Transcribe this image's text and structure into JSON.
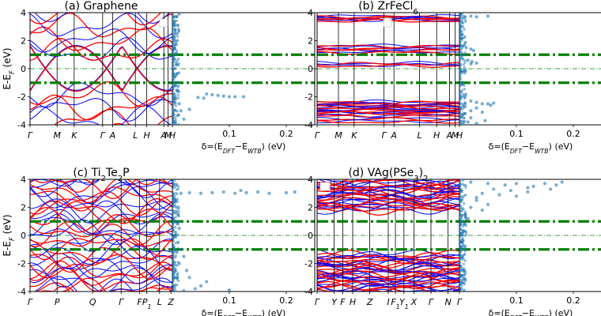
{
  "figure": {
    "ylabel": "E-E_F (eV)",
    "xlabel_delta": "δ=(E_DFT−E_WTB) (eV)"
  },
  "chart_data": [
    {
      "type": "line",
      "panel": "a",
      "title": "(a) Graphene",
      "ylim": [
        -4,
        4
      ],
      "yticks": [
        -4,
        -2,
        0,
        2,
        4
      ],
      "kpath": [
        "Γ",
        "M",
        "K",
        "Γ",
        "A",
        "L",
        "H",
        "A",
        "M",
        "H"
      ],
      "kpath_positions": [
        0,
        0.19,
        0.31,
        0.51,
        0.58,
        0.74,
        0.82,
        0.94,
        0.97,
        1.0
      ],
      "hlines_thick": [
        1,
        -1
      ],
      "hline_fermi": 0,
      "series": [
        {
          "name": "DFT",
          "color": "#0000ff"
        },
        {
          "name": "WTB",
          "color": "#ff0000"
        }
      ],
      "scatter": {
        "xlim": [
          0,
          0.25
        ],
        "xticks": [
          0.1,
          0.2
        ],
        "xticklabels": [
          "0.1",
          "0.2"
        ],
        "points": [
          [
            0.012,
            3.9
          ],
          [
            0.006,
            3.7
          ],
          [
            0.004,
            3.4
          ],
          [
            0.009,
            3.1
          ],
          [
            0.005,
            2.8
          ],
          [
            0.008,
            2.5
          ],
          [
            0.003,
            2.2
          ],
          [
            0.006,
            1.8
          ],
          [
            0.004,
            1.4
          ],
          [
            0.007,
            1.1
          ],
          [
            0.002,
            0.8
          ],
          [
            0.004,
            -0.6
          ],
          [
            0.006,
            -1.2
          ],
          [
            0.009,
            -1.6
          ],
          [
            0.005,
            -2.0
          ],
          [
            0.012,
            -2.5
          ],
          [
            0.06,
            -1.8
          ],
          [
            0.07,
            -1.85
          ],
          [
            0.08,
            -1.9
          ],
          [
            0.09,
            -1.95
          ],
          [
            0.1,
            -2.0
          ],
          [
            0.11,
            -2.0
          ],
          [
            0.125,
            -2.0
          ],
          [
            0.045,
            -2.05
          ],
          [
            0.055,
            -2.1
          ],
          [
            0.03,
            -2.9
          ],
          [
            0.015,
            -3.0
          ],
          [
            0.02,
            -3.6
          ],
          [
            0.01,
            -3.3
          ],
          [
            0.005,
            -3.8
          ],
          [
            0.003,
            -2.3
          ],
          [
            0.007,
            0.3
          ]
        ]
      }
    },
    {
      "type": "line",
      "panel": "b",
      "title": "(b) ZrFeCl6",
      "ylim": [
        -4,
        4
      ],
      "yticks": [
        -4,
        -2,
        0,
        2,
        4
      ],
      "kpath": [
        "Γ",
        "M",
        "K",
        "Γ",
        "A",
        "L",
        "H",
        "A",
        "M",
        "H"
      ],
      "kpath_positions": [
        0,
        0.15,
        0.26,
        0.47,
        0.54,
        0.72,
        0.84,
        0.93,
        0.97,
        1.0
      ],
      "hlines_thick": [
        1,
        -1
      ],
      "hline_fermi": 0,
      "series": [
        {
          "name": "DFT",
          "color": "#0000ff"
        },
        {
          "name": "WTB",
          "color": "#ff0000"
        }
      ],
      "scatter": {
        "xlim": [
          0,
          0.25
        ],
        "xticks": [
          0.1,
          0.2
        ],
        "xticklabels": [
          "0.1",
          "0.2"
        ],
        "points": [
          [
            0.01,
            3.7
          ],
          [
            0.03,
            3.7
          ],
          [
            0.05,
            3.75
          ],
          [
            0.02,
            3.75
          ],
          [
            0.012,
            1.5
          ],
          [
            0.02,
            1.4
          ],
          [
            0.025,
            1.3
          ],
          [
            0.008,
            1.0
          ],
          [
            0.015,
            0.6
          ],
          [
            0.022,
            0.5
          ],
          [
            0.02,
            0.35
          ],
          [
            0.03,
            0.4
          ],
          [
            0.01,
            -0.1
          ],
          [
            0.005,
            -1.1
          ],
          [
            0.01,
            -2.0
          ],
          [
            0.02,
            -2.3
          ],
          [
            0.03,
            -2.4
          ],
          [
            0.04,
            -2.5
          ],
          [
            0.05,
            -2.5
          ],
          [
            0.055,
            -2.6
          ],
          [
            0.03,
            -2.8
          ],
          [
            0.02,
            -3.0
          ],
          [
            0.01,
            -3.2
          ],
          [
            0.04,
            -3.1
          ],
          [
            0.02,
            -3.5
          ],
          [
            0.015,
            -3.8
          ],
          [
            0.03,
            -3.9
          ],
          [
            0.045,
            -3.7
          ],
          [
            0.01,
            -2.7
          ],
          [
            0.06,
            -2.45
          ]
        ]
      }
    },
    {
      "type": "line",
      "panel": "c",
      "title": "(c) Ti2Te2P",
      "ylim": [
        -4,
        4
      ],
      "yticks": [
        -4,
        -2,
        0,
        2,
        4
      ],
      "kpath": [
        "Γ",
        "P",
        "Q",
        "Γ",
        "F",
        "P1",
        "L",
        "Z"
      ],
      "kpath_positions": [
        0,
        0.19,
        0.44,
        0.64,
        0.77,
        0.82,
        0.91,
        0.99
      ],
      "hlines_thick": [
        1,
        -1
      ],
      "hline_fermi": 0,
      "series": [
        {
          "name": "DFT",
          "color": "#0000ff"
        },
        {
          "name": "WTB",
          "color": "#ff0000"
        }
      ],
      "scatter": {
        "xlim": [
          0,
          0.25
        ],
        "xticks": [
          0.1,
          0.2
        ],
        "xticklabels": [
          "0.1",
          "0.2"
        ],
        "points": [
          [
            0.015,
            3.0
          ],
          [
            0.03,
            3.05
          ],
          [
            0.05,
            3.0
          ],
          [
            0.07,
            3.05
          ],
          [
            0.09,
            3.1
          ],
          [
            0.11,
            3.0
          ],
          [
            0.13,
            3.05
          ],
          [
            0.15,
            3.1
          ],
          [
            0.17,
            3.0
          ],
          [
            0.2,
            3.05
          ],
          [
            0.215,
            3.1
          ],
          [
            0.12,
            3.2
          ],
          [
            0.005,
            2.5
          ],
          [
            0.008,
            2.0
          ],
          [
            0.01,
            1.5
          ],
          [
            0.006,
            1.0
          ],
          [
            0.012,
            0.5
          ],
          [
            0.004,
            0.0
          ],
          [
            0.01,
            -0.5
          ],
          [
            0.015,
            -1.0
          ],
          [
            0.02,
            -1.5
          ],
          [
            0.012,
            -2.0
          ],
          [
            0.025,
            -2.5
          ],
          [
            0.03,
            -3.0
          ],
          [
            0.06,
            -3.3
          ],
          [
            0.05,
            -3.6
          ],
          [
            0.04,
            -3.8
          ],
          [
            0.1,
            -3.9
          ],
          [
            0.02,
            -3.95
          ],
          [
            0.008,
            -1.2
          ]
        ]
      }
    },
    {
      "type": "line",
      "panel": "d",
      "title": "(d) VAg(PSe3)2",
      "ylim": [
        -4,
        4
      ],
      "yticks": [
        -4,
        -2,
        0,
        2,
        4
      ],
      "kpath": [
        "Γ",
        "Y",
        "F",
        "H",
        "Z",
        "I",
        "F1",
        "Y1",
        "X",
        "Γ",
        "N",
        "Γ"
      ],
      "kpath_positions": [
        0,
        0.12,
        0.18,
        0.25,
        0.37,
        0.5,
        0.55,
        0.61,
        0.68,
        0.8,
        0.92,
        1.0
      ],
      "hlines_thick": [
        1,
        -1
      ],
      "hline_fermi": 0,
      "series": [
        {
          "name": "DFT",
          "color": "#0000ff"
        },
        {
          "name": "WTB",
          "color": "#ff0000"
        }
      ],
      "scatter": {
        "xlim": [
          0,
          0.25
        ],
        "xticks": [
          0.1,
          0.2
        ],
        "xticklabels": [
          "0.1",
          "0.2"
        ],
        "points": [
          [
            0.02,
            3.8
          ],
          [
            0.05,
            3.7
          ],
          [
            0.08,
            3.6
          ],
          [
            0.1,
            3.7
          ],
          [
            0.13,
            3.5
          ],
          [
            0.15,
            3.7
          ],
          [
            0.17,
            3.6
          ],
          [
            0.18,
            3.8
          ],
          [
            0.06,
            3.3
          ],
          [
            0.09,
            3.2
          ],
          [
            0.12,
            3.1
          ],
          [
            0.04,
            3.0
          ],
          [
            0.07,
            2.9
          ],
          [
            0.1,
            2.8
          ],
          [
            0.03,
            2.5
          ],
          [
            0.05,
            2.2
          ],
          [
            0.02,
            2.0
          ],
          [
            0.04,
            1.8
          ],
          [
            0.01,
            1.5
          ],
          [
            0.015,
            1.2
          ],
          [
            0.01,
            0.8
          ],
          [
            0.008,
            0.3
          ],
          [
            0.005,
            -0.5
          ],
          [
            0.004,
            -1.5
          ],
          [
            0.006,
            -2.5
          ],
          [
            0.005,
            -3.2
          ],
          [
            0.003,
            -3.8
          ],
          [
            0.12,
            3.4
          ],
          [
            0.16,
            3.3
          ],
          [
            0.03,
            2.7
          ]
        ]
      }
    }
  ]
}
